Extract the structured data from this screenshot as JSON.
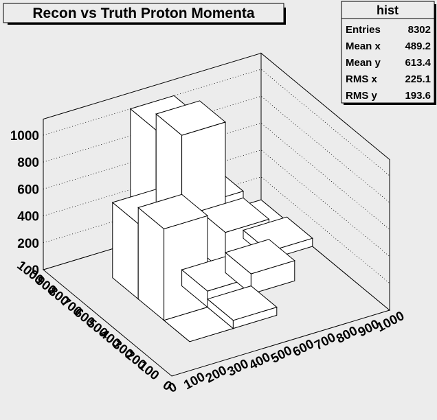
{
  "chart_data": {
    "type": "lego3d",
    "title": "Recon vs Truth Proton Momenta",
    "z_ticks": [
      "0",
      "200",
      "400",
      "600",
      "800",
      "1000"
    ],
    "z_max": 1000,
    "x_ticks": [
      "0",
      "100",
      "200",
      "300",
      "400",
      "500",
      "600",
      "700",
      "800",
      "900",
      "1000"
    ],
    "y_ticks": [
      "0",
      "100",
      "200",
      "300",
      "400",
      "500",
      "600",
      "700",
      "800",
      "900",
      "1000"
    ],
    "x_range": [
      0,
      1000
    ],
    "y_range": [
      0,
      1000
    ],
    "bin_width": 200,
    "bins": [
      {
        "x": 200,
        "y": 200,
        "z": 0
      },
      {
        "x": 200,
        "y": 400,
        "z": 680
      },
      {
        "x": 400,
        "y": 400,
        "z": 120
      },
      {
        "x": 400,
        "y": 200,
        "z": 60
      },
      {
        "x": 200,
        "y": 600,
        "z": 560
      },
      {
        "x": 400,
        "y": 600,
        "z": 1120
      },
      {
        "x": 400,
        "y": 800,
        "z": 1000
      },
      {
        "x": 600,
        "y": 600,
        "z": 300
      },
      {
        "x": 600,
        "y": 400,
        "z": 150
      },
      {
        "x": 600,
        "y": 800,
        "z": 350
      },
      {
        "x": 800,
        "y": 800,
        "z": 30
      },
      {
        "x": 800,
        "y": 600,
        "z": 60
      }
    ],
    "stats": {
      "title": "hist",
      "rows": [
        {
          "label": "Entries",
          "value": "8302"
        },
        {
          "label": "Mean x",
          "value": "489.2"
        },
        {
          "label": "Mean y",
          "value": "613.4"
        },
        {
          "label": "RMS x",
          "value": "225.1"
        },
        {
          "label": "RMS y",
          "value": "193.6"
        }
      ]
    },
    "colors": {
      "background": "#ececec",
      "box_face": "#ffffff",
      "line": "#000000"
    }
  }
}
